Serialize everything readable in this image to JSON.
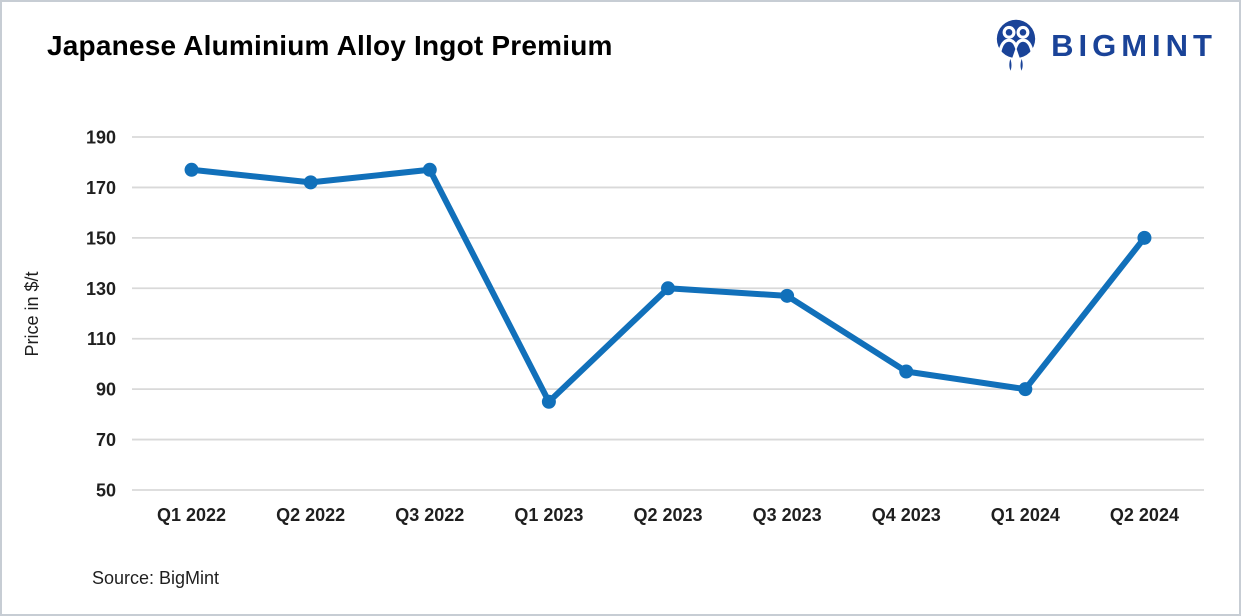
{
  "header": {
    "title": "Japanese Aluminium Alloy Ingot Premium",
    "logo_text": "BIGMINT"
  },
  "footer": {
    "source": "Source: BigMint"
  },
  "colors": {
    "line": "#1170ba",
    "grid": "#d9d9d9",
    "logo": "#1a4398",
    "text": "#1f1f1f"
  },
  "chart_data": {
    "type": "line",
    "title": "Japanese Aluminium Alloy Ingot Premium",
    "categories": [
      "Q1 2022",
      "Q2 2022",
      "Q3 2022",
      "Q1 2023",
      "Q2 2023",
      "Q3 2023",
      "Q4 2023",
      "Q1 2024",
      "Q2 2024"
    ],
    "series": [
      {
        "name": "Japanese Aluminium Alloy Ingot Premium",
        "values": [
          177,
          172,
          177,
          85,
          130,
          127,
          97,
          90,
          150
        ]
      }
    ],
    "xlabel": "",
    "ylabel": "Price in $/t",
    "ylim": [
      50,
      190
    ],
    "yticks": [
      50,
      70,
      90,
      110,
      130,
      150,
      170,
      190
    ],
    "grid": "horizontal",
    "legend": "none",
    "marker": "circle"
  }
}
